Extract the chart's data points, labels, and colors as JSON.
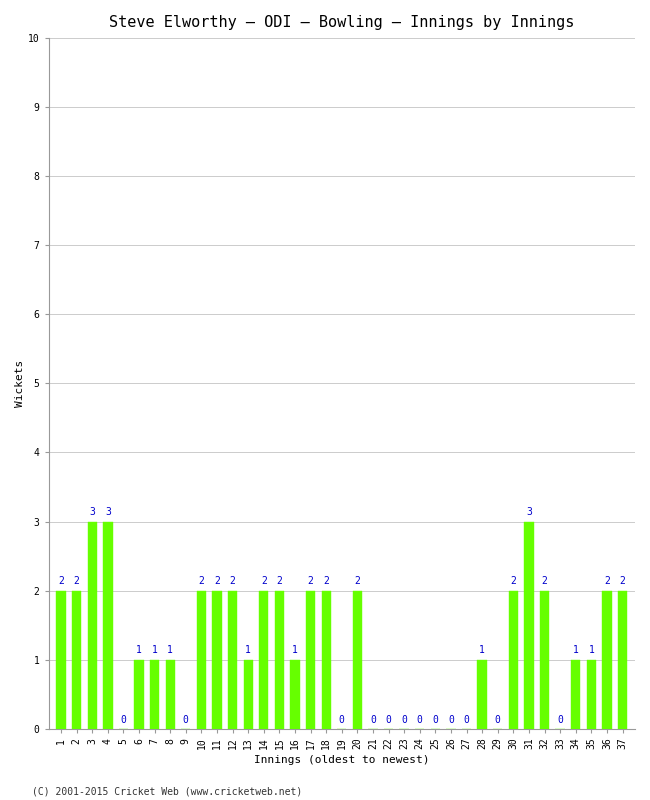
{
  "title": "Steve Elworthy – ODI – Bowling – Innings by Innings",
  "xlabel": "Innings (oldest to newest)",
  "ylabel": "Wickets",
  "bar_color": "#66ff00",
  "bar_edge_color": "#66ff00",
  "label_color": "#0000cc",
  "background_color": "#ffffff",
  "grid_color": "#cccccc",
  "ylim": [
    0,
    10
  ],
  "yticks": [
    0,
    1,
    2,
    3,
    4,
    5,
    6,
    7,
    8,
    9,
    10
  ],
  "innings": [
    1,
    2,
    3,
    4,
    5,
    6,
    7,
    8,
    9,
    10,
    11,
    12,
    13,
    14,
    15,
    16,
    17,
    18,
    19,
    20,
    21,
    22,
    23,
    24,
    25,
    26,
    27,
    28,
    29,
    30,
    31,
    32,
    33,
    34,
    35,
    36,
    37
  ],
  "wickets": [
    2,
    2,
    3,
    3,
    0,
    1,
    1,
    1,
    0,
    2,
    2,
    2,
    1,
    2,
    2,
    1,
    2,
    2,
    0,
    2,
    0,
    0,
    0,
    0,
    0,
    0,
    0,
    1,
    0,
    2,
    3,
    2,
    0,
    1,
    1,
    2,
    2
  ],
  "footer": "(C) 2001-2015 Cricket Web (www.cricketweb.net)",
  "title_fontsize": 11,
  "axis_label_fontsize": 8,
  "tick_fontsize": 7,
  "value_label_fontsize": 7,
  "footer_fontsize": 7
}
